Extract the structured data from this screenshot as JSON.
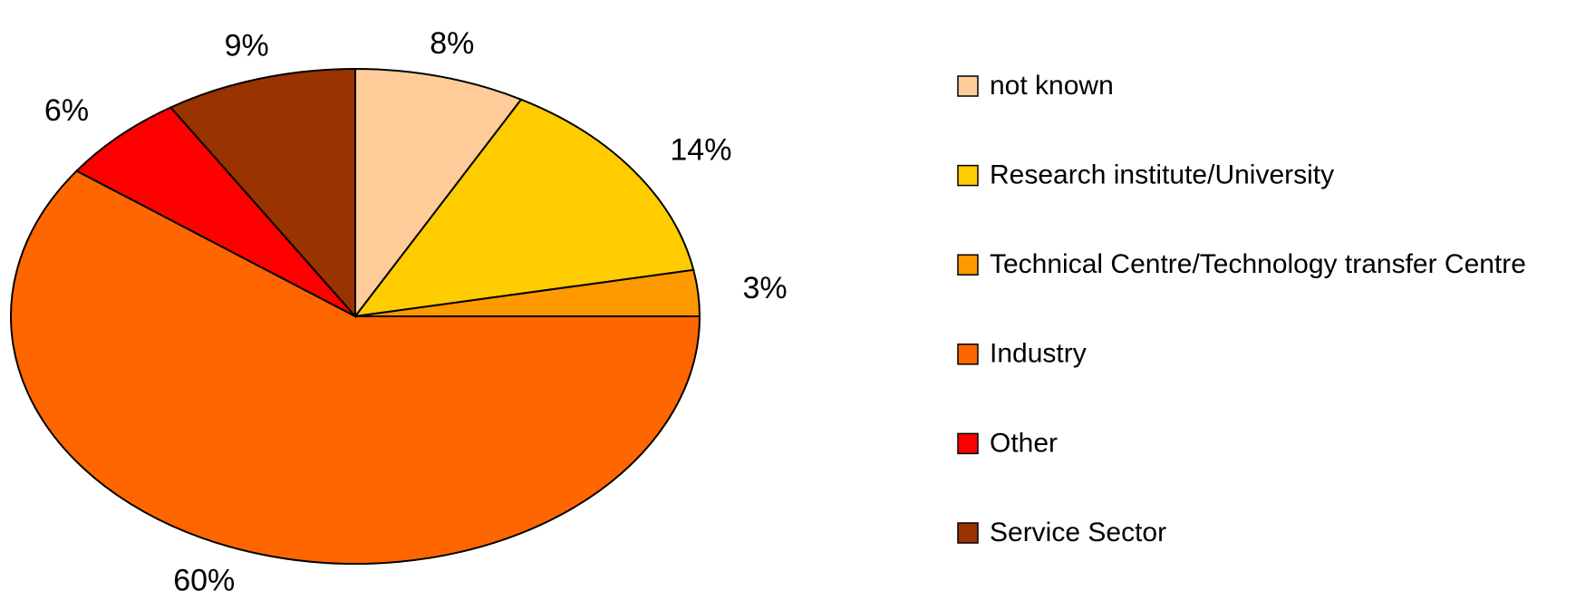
{
  "chart_data": {
    "type": "pie",
    "categories": [
      "not known",
      "Research institute/University",
      "Technical Centre/Technology transfer Centre",
      "Industry",
      "Other",
      "Service Sector"
    ],
    "values": [
      8,
      14,
      3,
      60,
      6,
      9
    ],
    "value_labels": [
      "8%",
      "14%",
      "3%",
      "60%",
      "6%",
      "9%"
    ],
    "colors": [
      "#ffcc99",
      "#ffcc00",
      "#ff9900",
      "#ff6600",
      "#ff0000",
      "#993300"
    ],
    "legend": "right"
  }
}
